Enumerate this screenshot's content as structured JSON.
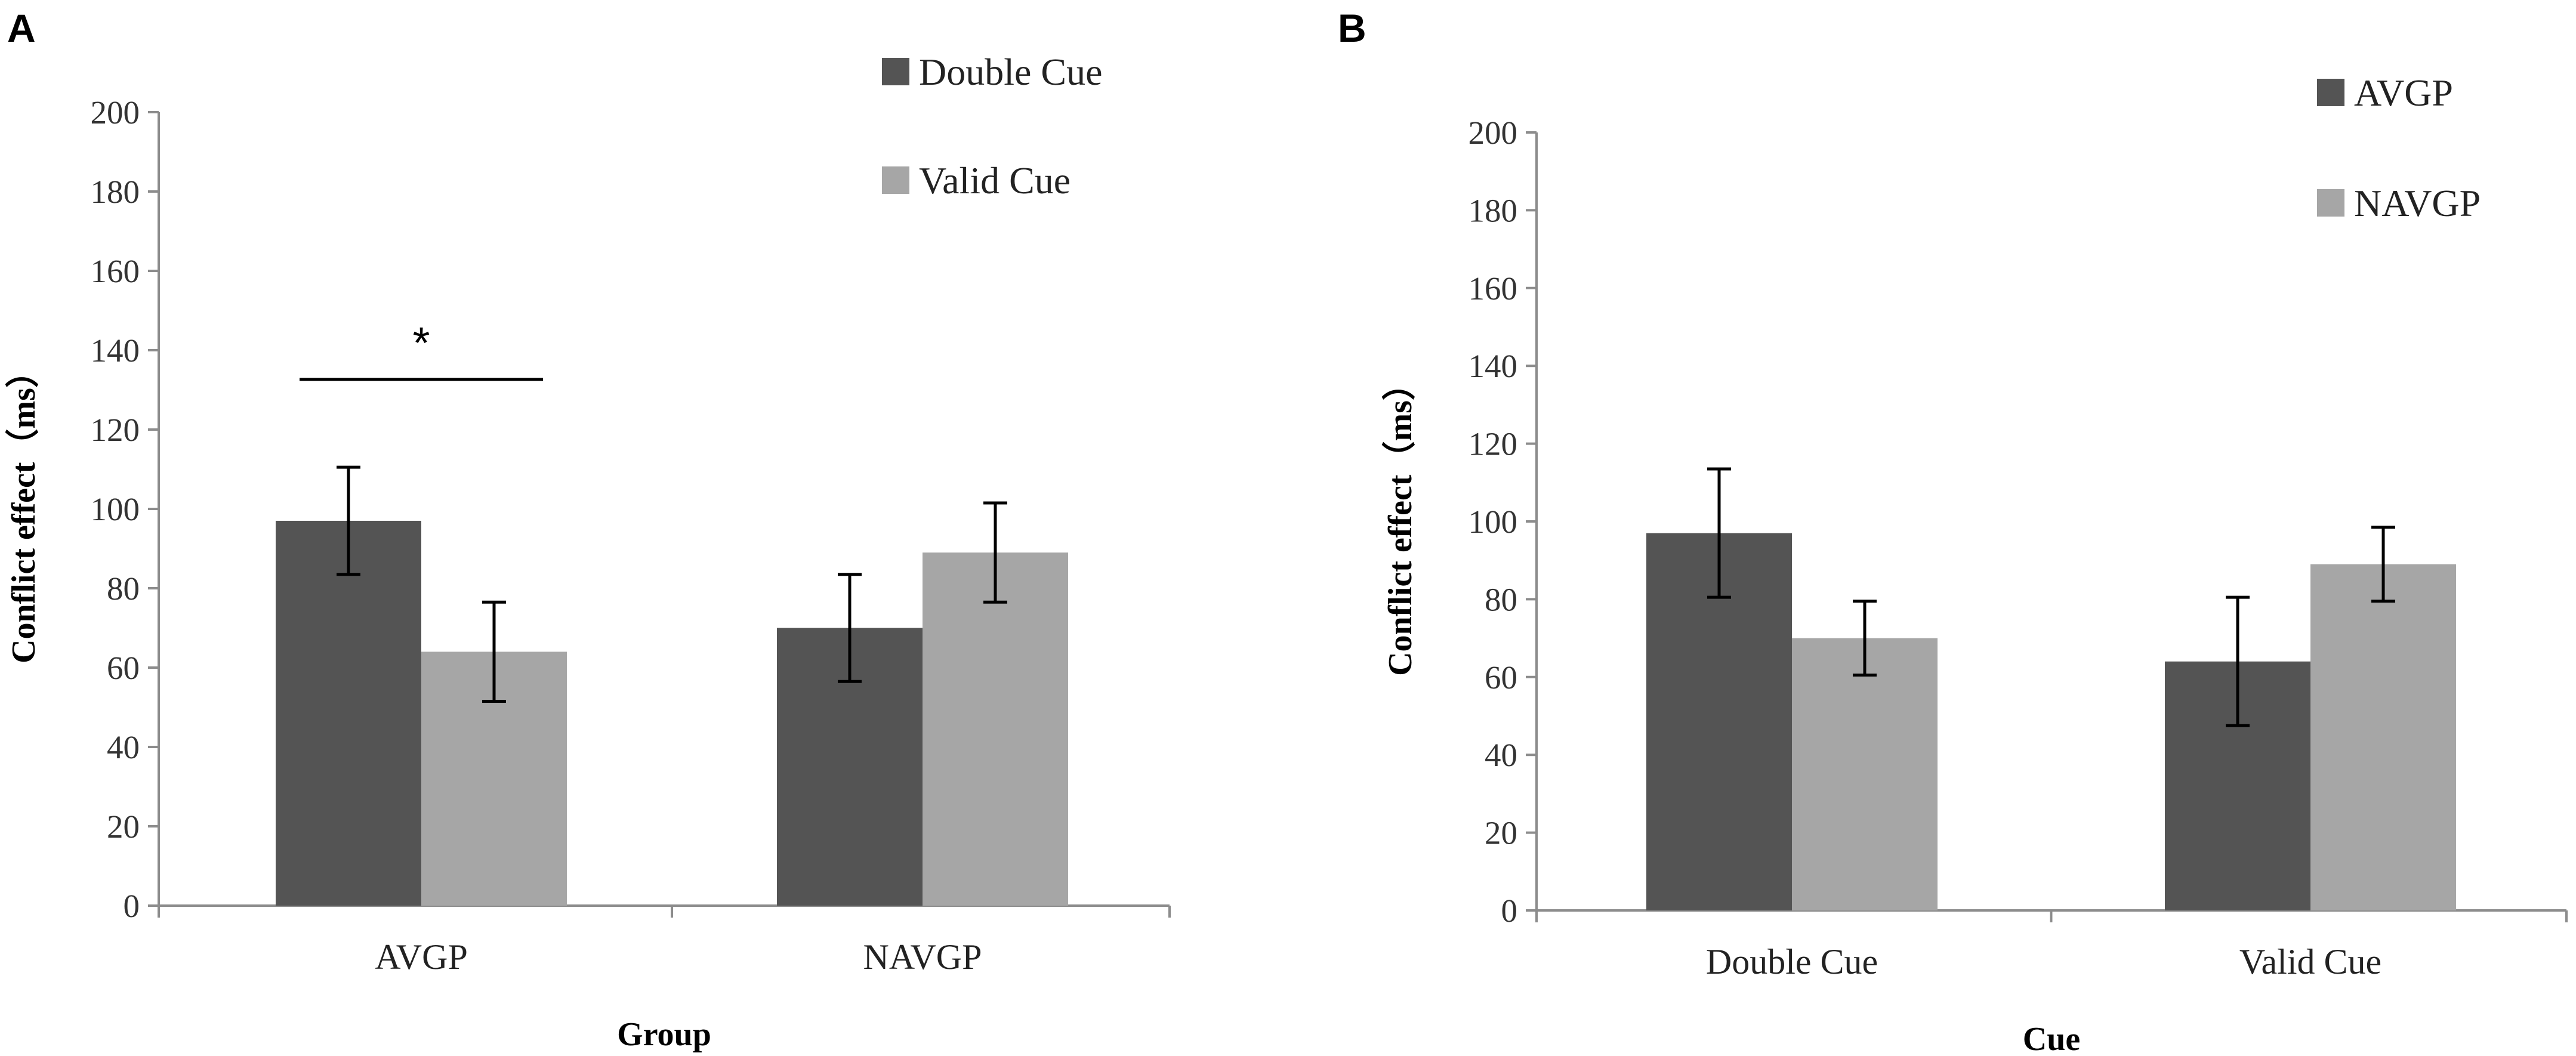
{
  "colors": {
    "dark": "#545454",
    "light": "#a6a6a6",
    "axis": "#8c8c8c",
    "error": "#000000"
  },
  "chart_data": [
    {
      "panel": "A",
      "type": "bar",
      "xlabel": "Group",
      "ylabel": "Conflict effect（ms）",
      "ylim": [
        0,
        200
      ],
      "yticks": [
        0,
        20,
        40,
        60,
        80,
        100,
        120,
        140,
        160,
        180,
        200
      ],
      "categories": [
        "AVGP",
        "NAVGP"
      ],
      "series": [
        {
          "name": "Double Cue",
          "color": "dark",
          "values": [
            97,
            70
          ],
          "errors": [
            13.5,
            13.5
          ]
        },
        {
          "name": "Valid Cue",
          "color": "light",
          "values": [
            64,
            89
          ],
          "errors": [
            12.5,
            12.5
          ]
        }
      ],
      "significance": {
        "label": "*",
        "category": 0
      }
    },
    {
      "panel": "B",
      "type": "bar",
      "xlabel": "Cue",
      "ylabel": "Conflict effect（ms）",
      "ylim": [
        0,
        200
      ],
      "yticks": [
        0,
        20,
        40,
        60,
        80,
        100,
        120,
        140,
        160,
        180,
        200
      ],
      "categories": [
        "Double Cue",
        "Valid Cue"
      ],
      "series": [
        {
          "name": "AVGP",
          "color": "dark",
          "values": [
            97,
            64
          ],
          "errors": [
            16.5,
            16.5
          ]
        },
        {
          "name": "NAVGP",
          "color": "light",
          "values": [
            70,
            89
          ],
          "errors": [
            9.5,
            9.5
          ]
        }
      ]
    }
  ]
}
